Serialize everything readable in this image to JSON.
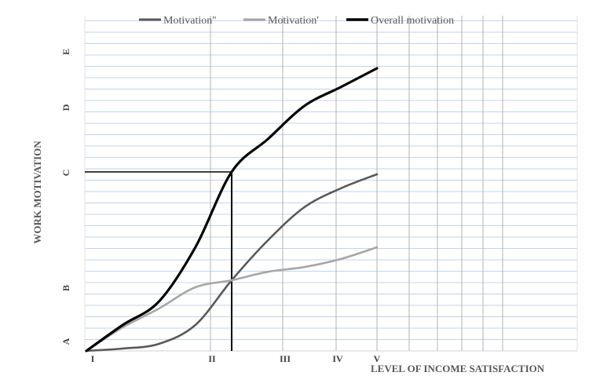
{
  "chart_data": {
    "type": "line",
    "title": "",
    "xlabel": "LEVEL OF INCOME SATISFACTION",
    "ylabel": "WORK MOTIVATION",
    "x_ticks": [
      "I",
      "II",
      "III",
      "IV",
      "V"
    ],
    "y_ticks": [
      "A",
      "B",
      "C",
      "D",
      "E"
    ],
    "xlim": [
      1,
      10
    ],
    "ylim": [
      0,
      5.6
    ],
    "legend_position": "top",
    "grid": true,
    "series": [
      {
        "name": "Motivation''",
        "color": "#595959",
        "x": [
          1,
          1.5,
          2,
          2.5,
          3,
          3.5,
          4,
          4.5,
          5
        ],
        "y": [
          0,
          0.05,
          0.15,
          0.55,
          1.5,
          2.35,
          3.05,
          3.45,
          3.75
        ]
      },
      {
        "name": "Motivation'",
        "color": "#a6a6a6",
        "x": [
          1,
          1.5,
          2,
          2.5,
          3,
          3.5,
          4,
          4.5,
          5
        ],
        "y": [
          0,
          0.5,
          0.9,
          1.35,
          1.5,
          1.68,
          1.78,
          1.95,
          2.2
        ]
      },
      {
        "name": "Overall motivation",
        "color": "#000000",
        "x": [
          1,
          1.5,
          2,
          2.5,
          3,
          3.5,
          4,
          4.5,
          5
        ],
        "y": [
          0,
          0.55,
          1.05,
          2.2,
          3.8,
          4.5,
          5.2,
          5.6,
          6.0
        ]
      }
    ],
    "annotations": [
      {
        "type": "guide",
        "x": 3,
        "y": 3.8,
        "description": "horizontal and vertical reference lines to Overall motivation at III"
      }
    ]
  }
}
